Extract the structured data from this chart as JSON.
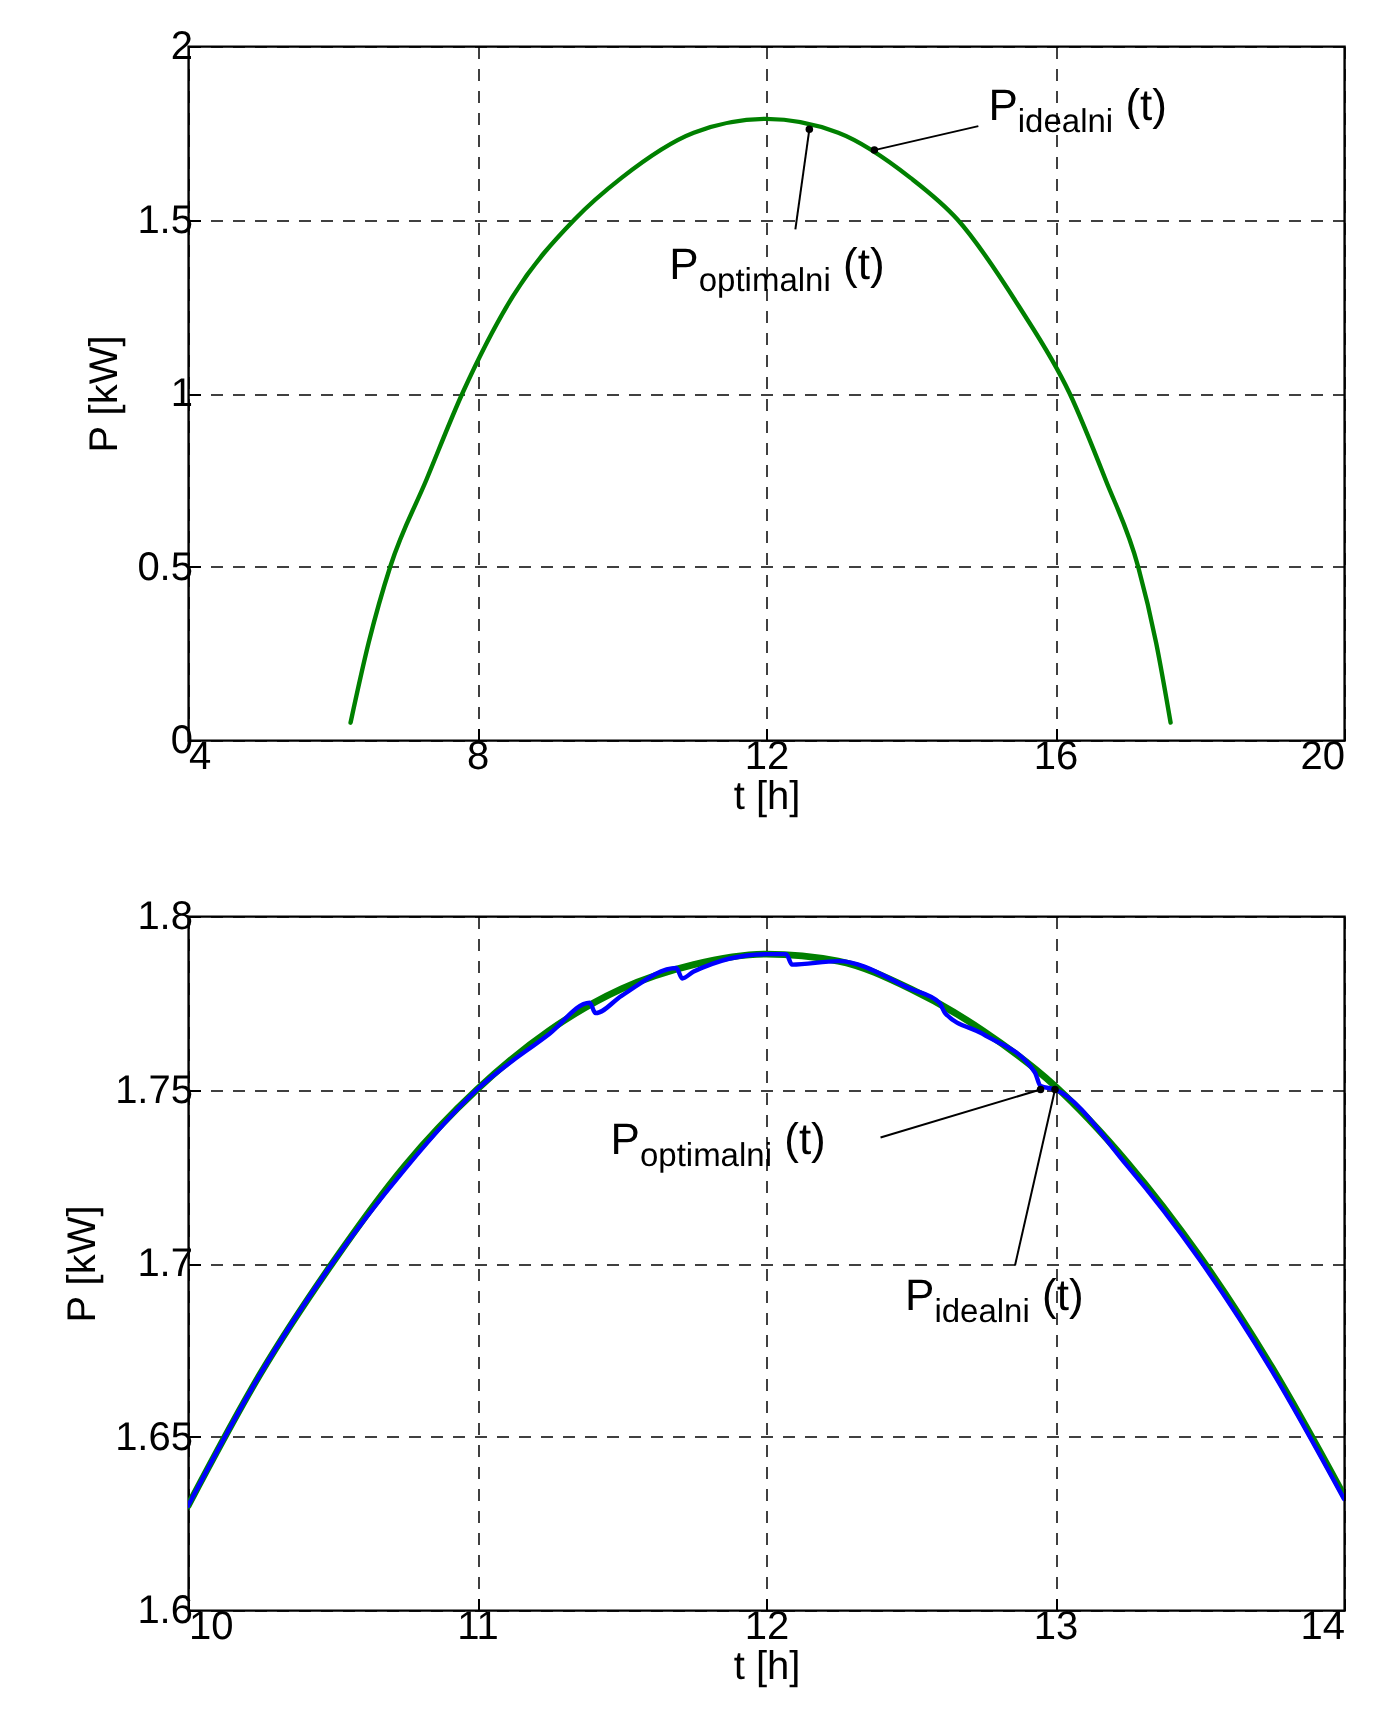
{
  "chart_data": [
    {
      "type": "line",
      "xlabel": "t [h]",
      "ylabel": "P [kW]",
      "xlim": [
        4,
        20
      ],
      "ylim": [
        0,
        2
      ],
      "xticks": [
        4,
        8,
        12,
        16,
        20
      ],
      "yticks": [
        0,
        0.5,
        1,
        1.5,
        2
      ],
      "grid": true,
      "x": [
        6.25,
        6.5,
        6.8,
        7.3,
        7.8,
        8.5,
        9.35,
        10,
        11,
        12,
        13,
        14,
        14.65,
        15.5,
        16.2,
        16.7,
        17.15,
        17.4,
        17.6
      ],
      "series": [
        {
          "color": "#008000",
          "values": [
            0.05,
            0.28,
            0.5,
            0.75,
            1.0,
            1.28,
            1.5,
            1.62,
            1.75,
            1.79,
            1.75,
            1.62,
            1.5,
            1.25,
            1.0,
            0.75,
            0.5,
            0.28,
            0.05
          ]
        }
      ],
      "annotations": [
        {
          "text": "P$_{idealni}$ (t)",
          "x": 13.5,
          "y": 1.7
        },
        {
          "text": "P$_{optimalni}$ (t)",
          "x": 12.6,
          "y": 1.76
        }
      ]
    },
    {
      "type": "line",
      "xlabel": "t [h]",
      "ylabel": "P [kW]",
      "xlim": [
        10,
        14
      ],
      "ylim": [
        1.6,
        1.8
      ],
      "xticks": [
        10,
        11,
        12,
        13,
        14
      ],
      "yticks": [
        1.6,
        1.65,
        1.7,
        1.75,
        1.8
      ],
      "grid": true,
      "x": [
        10,
        10.25,
        10.5,
        10.75,
        11,
        11.25,
        11.5,
        11.75,
        12,
        12.25,
        12.5,
        12.75,
        13,
        13.25,
        13.5,
        13.75,
        14
      ],
      "series": [
        {
          "color": "#008000",
          "values": [
            1.63,
            1.668,
            1.7,
            1.728,
            1.75,
            1.767,
            1.779,
            1.786,
            1.789,
            1.787,
            1.779,
            1.767,
            1.751,
            1.729,
            1.702,
            1.67,
            1.633
          ]
        },
        {
          "color": "#0000ff",
          "x": [
            10,
            10.25,
            10.5,
            10.75,
            11,
            11.25,
            11.39,
            11.41,
            11.5,
            11.69,
            11.71,
            11.75,
            12,
            12.07,
            12.09,
            12.25,
            12.5,
            12.6,
            12.62,
            12.75,
            12.93,
            12.95,
            13,
            13.25,
            13.5,
            13.75,
            14
          ],
          "values": [
            1.63,
            1.668,
            1.7,
            1.727,
            1.75,
            1.766,
            1.775,
            1.772,
            1.777,
            1.785,
            1.782,
            1.784,
            1.789,
            1.789,
            1.786,
            1.787,
            1.779,
            1.775,
            1.772,
            1.766,
            1.755,
            1.751,
            1.75,
            1.728,
            1.701,
            1.669,
            1.632
          ]
        }
      ],
      "annotations": [
        {
          "text": "P$_{optimalni}$ (t)",
          "x": 12.95,
          "y": 1.75
        },
        {
          "text": "P$_{idealni}$ (t)",
          "x": 13,
          "y": 1.75
        }
      ]
    }
  ]
}
